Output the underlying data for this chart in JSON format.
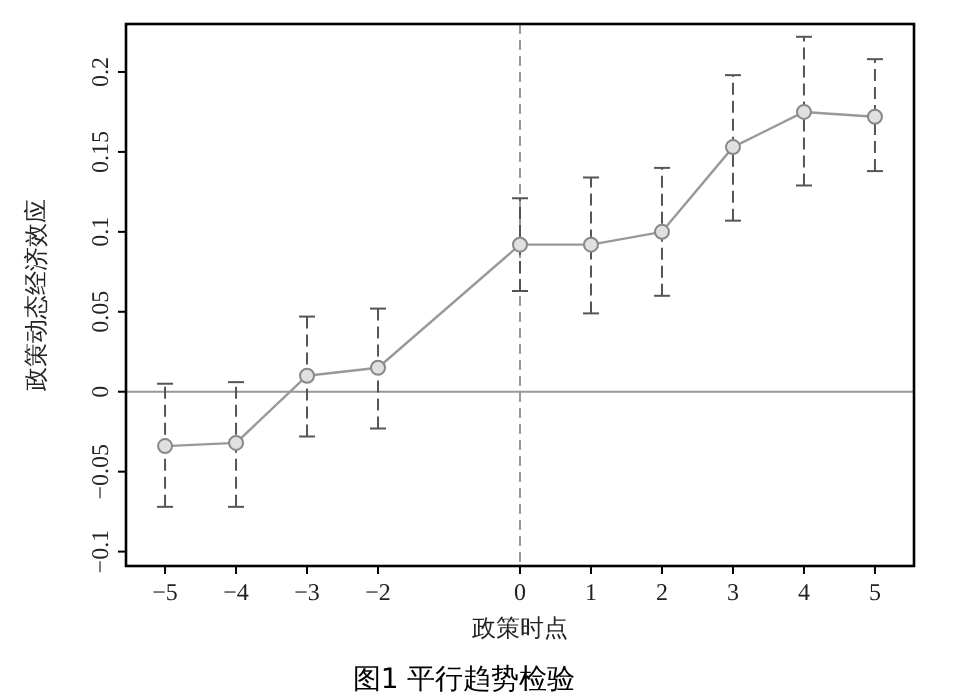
{
  "chart_data": {
    "type": "line",
    "title": "图1  平行趋势检验",
    "xlabel": "政策时点",
    "ylabel": "政策动态经济效应",
    "x": [
      -5,
      -4,
      -3,
      -2,
      0,
      1,
      2,
      3,
      4,
      5
    ],
    "series": [
      {
        "color": "#999999",
        "values": [
          -0.034,
          -0.032,
          0.01,
          0.015,
          0.092,
          0.092,
          0.1,
          0.153,
          0.175,
          0.172
        ],
        "errors": [
          [
            -0.072,
            0.005
          ],
          [
            -0.072,
            0.006
          ],
          [
            -0.028,
            0.047
          ],
          [
            -0.023,
            0.052
          ],
          [
            0.063,
            0.121
          ],
          [
            0.049,
            0.134
          ],
          [
            0.06,
            0.14
          ],
          [
            0.107,
            0.198
          ],
          [
            0.129,
            0.222
          ],
          [
            0.138,
            0.208
          ]
        ]
      }
    ],
    "xlim": [
      -5.55,
      5.55
    ],
    "ylim": [
      -0.109,
      0.23
    ],
    "xticks": [
      {
        "value": -5,
        "label": "−5"
      },
      {
        "value": -4,
        "label": "−4"
      },
      {
        "value": -3,
        "label": "−3"
      },
      {
        "value": -2,
        "label": "−2"
      },
      0,
      1,
      2,
      3,
      4,
      5
    ],
    "yticks": [
      {
        "value": -0.1,
        "label": "−0.1"
      },
      {
        "value": -0.05,
        "label": "−0.05"
      },
      0,
      0.05,
      0.1,
      0.15,
      0.2
    ],
    "ref_lines": [
      {
        "axis": "y",
        "value": 0,
        "color": "#999999",
        "line_style": "solid"
      },
      {
        "axis": "x",
        "value": 0,
        "color": "#999999",
        "line_style": "dashed"
      }
    ],
    "marker": "circle",
    "line_style": "solid"
  }
}
